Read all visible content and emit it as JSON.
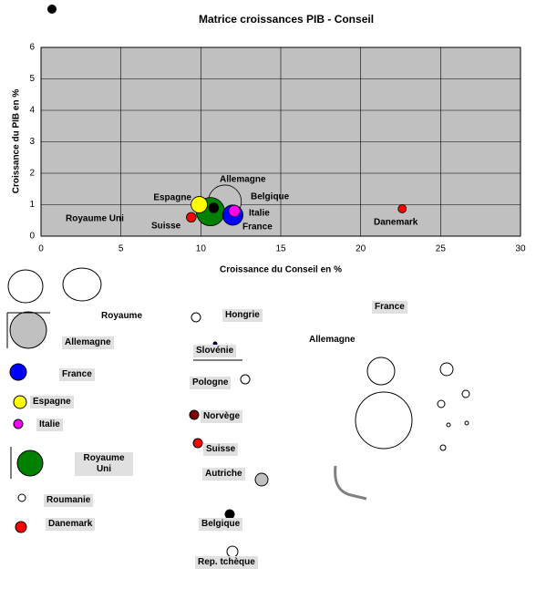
{
  "chart_data": {
    "type": "bubble",
    "title": "Matrice croissances PIB - Conseil",
    "x_label": "Croissance du Conseil en %",
    "y_label": "Croissance du PIB en %",
    "xlim": [
      0,
      30
    ],
    "xticks": [
      0,
      5,
      10,
      15,
      20,
      25,
      30
    ],
    "ylim": [
      0,
      6
    ],
    "yticks": [
      0,
      1,
      2,
      3,
      4,
      5,
      6
    ],
    "grid": true,
    "series": [
      {
        "name": "Allemagne",
        "color": "#c0c0c0",
        "x": [
          11.5
        ],
        "values": [
          1.1
        ],
        "sizes": [
          82
        ]
      },
      {
        "name": "Royaume Uni",
        "color": "#008000",
        "x": [
          10.6
        ],
        "values": [
          0.78
        ],
        "sizes": [
          60
        ]
      },
      {
        "name": "France",
        "color": "#0000ff",
        "x": [
          12.0
        ],
        "values": [
          0.67
        ],
        "sizes": [
          31
        ]
      },
      {
        "name": "Espagne",
        "color": "#ffff00",
        "x": [
          9.9
        ],
        "values": [
          1.0
        ],
        "sizes": [
          20
        ]
      },
      {
        "name": "Italie",
        "color": "#ff00ff",
        "x": [
          12.1
        ],
        "values": [
          0.8
        ],
        "sizes": [
          10
        ]
      },
      {
        "name": "Suisse",
        "color": "#ff0000",
        "x": [
          9.4
        ],
        "values": [
          0.6
        ],
        "sizes": [
          7
        ]
      },
      {
        "name": "Belgique",
        "color": "#000000",
        "x": [
          10.8
        ],
        "values": [
          0.9
        ],
        "sizes": [
          7
        ]
      },
      {
        "name": "Danemark",
        "color": "#ff0000",
        "x": [
          22.6
        ],
        "values": [
          0.87
        ],
        "sizes": [
          5
        ]
      }
    ]
  },
  "loose_labels": [
    "Royaume",
    "Allemagne",
    "France",
    "Espagne",
    "Italie",
    "Royaume Uni",
    "Roumanie",
    "Danemark",
    "Hongrie",
    "Slovénie",
    "Pologne",
    "Norvège",
    "Suisse",
    "Autriche",
    "Belgique",
    "Rep. tchèque",
    "France",
    "Allemagne"
  ]
}
